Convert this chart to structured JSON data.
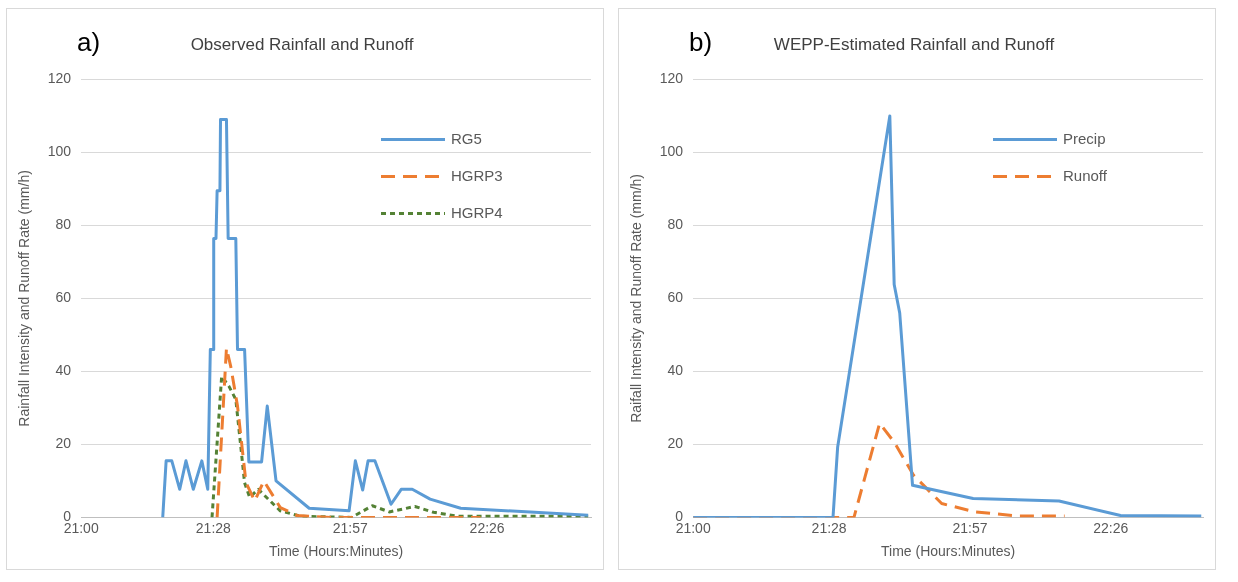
{
  "chart_data": [
    {
      "type": "line",
      "title": "Observed Rainfall and Runoff",
      "annotations": [
        "a)"
      ],
      "xlabel": "Time (Hours:Minutes)",
      "ylabel": "Rainfall Intensity and Runoff Rate (mm/h)",
      "xlim": [
        21,
        22.8
      ],
      "xticks": [
        {
          "value": 21,
          "label": "21:00"
        },
        {
          "value": 21.4667,
          "label": "21:28"
        },
        {
          "value": 21.95,
          "label": "21:57"
        },
        {
          "value": 22.4333,
          "label": "22:26"
        }
      ],
      "ylim": [
        0,
        120
      ],
      "yticks": [
        0,
        20,
        40,
        60,
        80,
        100,
        120
      ],
      "grid": "y",
      "legend": "top right",
      "marker": "none",
      "series": [
        {
          "name": "RG5",
          "color": "#5b9bd5",
          "line_style": "solid",
          "x": [
            21.288,
            21.3,
            21.32,
            21.348,
            21.37,
            21.396,
            21.426,
            21.447,
            21.456,
            21.466,
            21.468,
            21.476,
            21.48,
            21.49,
            21.492,
            21.513,
            21.519,
            21.546,
            21.552,
            21.577,
            21.592,
            21.637,
            21.657,
            21.688,
            21.805,
            21.946,
            21.968,
            21.994,
            22.013,
            22.037,
            22.094,
            22.13,
            22.169,
            22.232,
            22.34,
            22.79
          ],
          "values": [
            0,
            15.5,
            15.5,
            7.7,
            15.5,
            7.7,
            15.5,
            7.7,
            46,
            46,
            76.4,
            76.4,
            89.5,
            89.5,
            109,
            109,
            76.4,
            76.4,
            46,
            46,
            15.2,
            15.2,
            30.5,
            10,
            2.5,
            1.8,
            15.5,
            7.5,
            15.5,
            15.5,
            3.6,
            7.7,
            7.7,
            5,
            2.5,
            0.6
          ]
        },
        {
          "name": "HGRP3",
          "color": "#ed7d31",
          "line_style": "dashed",
          "x": [
            21.48,
            21.513,
            21.528,
            21.552,
            21.582,
            21.613,
            21.645,
            21.703,
            21.763,
            21.883,
            22.41
          ],
          "values": [
            0,
            46.4,
            41.4,
            30.5,
            9.5,
            4.5,
            10,
            2.7,
            0.5,
            0,
            0
          ]
        },
        {
          "name": "HGRP4",
          "color": "#548235",
          "line_style": "dotted",
          "x": [
            21.462,
            21.496,
            21.522,
            21.546,
            21.577,
            21.595,
            21.625,
            21.703,
            21.775,
            21.955,
            22.028,
            22.088,
            22.178,
            22.244,
            22.329,
            22.79
          ],
          "values": [
            0,
            38.6,
            35.9,
            32.3,
            9.5,
            5.5,
            7.7,
            1.8,
            0.3,
            0,
            3.2,
            1.5,
            3,
            1.4,
            0.3,
            0.3
          ]
        }
      ]
    },
    {
      "type": "line",
      "title": "WEPP-Estimated Rainfall and Runoff",
      "annotations": [
        "b)"
      ],
      "xlabel": "Time (Hours:Minutes)",
      "ylabel": "Raifall Intensity and Runoff Rate (mm/h)",
      "xlim": [
        21,
        22.75
      ],
      "xticks": [
        {
          "value": 21,
          "label": "21:00"
        },
        {
          "value": 21.4667,
          "label": "21:28"
        },
        {
          "value": 21.95,
          "label": "21:57"
        },
        {
          "value": 22.4333,
          "label": "22:26"
        }
      ],
      "ylim": [
        0,
        120
      ],
      "yticks": [
        0,
        20,
        40,
        60,
        80,
        100,
        120
      ],
      "grid": "y",
      "legend": "top right",
      "marker": "none",
      "series": [
        {
          "name": "Precip",
          "color": "#5b9bd5",
          "line_style": "solid",
          "x": [
            21,
            21.48,
            21.496,
            21.675,
            21.69,
            21.709,
            21.753,
            21.961,
            22.256,
            22.467,
            22.744
          ],
          "values": [
            0,
            0,
            19.3,
            110,
            63.8,
            56,
            8.8,
            5.2,
            4.5,
            0.5,
            0.4
          ]
        },
        {
          "name": "Runoff",
          "color": "#ed7d31",
          "line_style": "dashed",
          "x": [
            21,
            21.552,
            21.64,
            21.69,
            21.757,
            21.853,
            21.968,
            22.112,
            22.275
          ],
          "values": [
            0,
            0,
            25.8,
            20.6,
            11.5,
            3.8,
            1.5,
            0.4,
            0.4
          ]
        }
      ]
    }
  ]
}
